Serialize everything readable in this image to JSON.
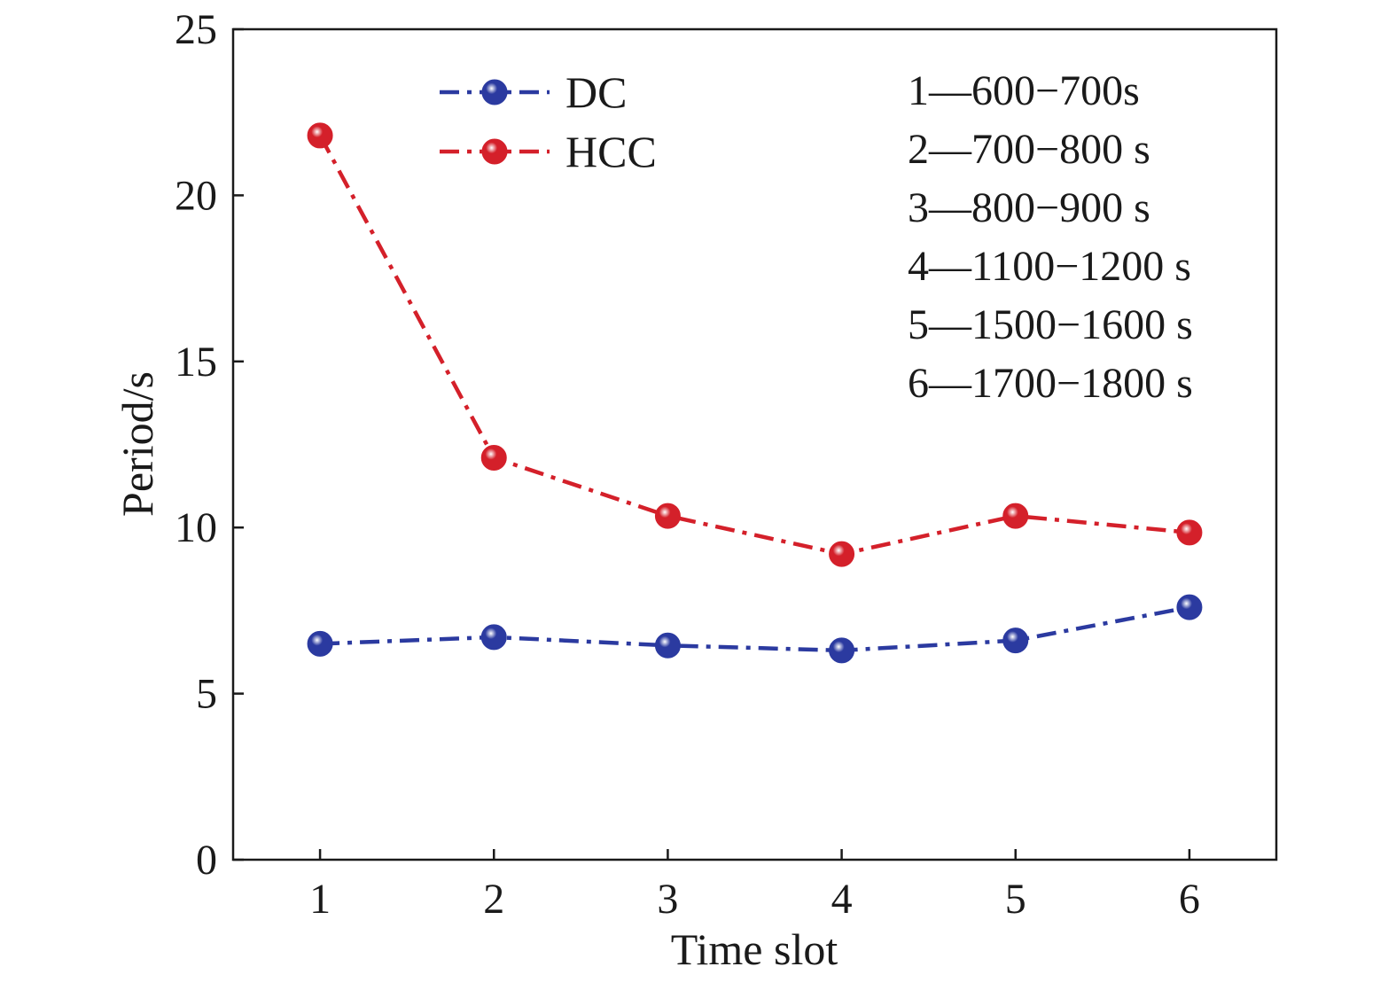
{
  "chart_data": {
    "type": "line",
    "title": "",
    "xlabel": "Time slot",
    "ylabel": "Period/s",
    "categories": [
      "1",
      "2",
      "3",
      "4",
      "5",
      "6"
    ],
    "x": [
      1,
      2,
      3,
      4,
      5,
      6
    ],
    "xlim": [
      0.5,
      6.5
    ],
    "ylim": [
      0,
      25
    ],
    "yticks": [
      "0",
      "5",
      "10",
      "15",
      "20",
      "25"
    ],
    "grid": false,
    "legend_position": "top-left",
    "series": [
      {
        "name": "DC",
        "color": "#2b3aa0",
        "marker": "sphere",
        "line_style": "dash-dot",
        "values": [
          6.5,
          6.7,
          6.45,
          6.3,
          6.6,
          7.6
        ]
      },
      {
        "name": "HCC",
        "color": "#d4202a",
        "marker": "sphere",
        "line_style": "dash-dot",
        "values": [
          21.8,
          12.1,
          10.35,
          9.2,
          10.35,
          9.85
        ]
      }
    ],
    "annotations": [
      "1—600−700s",
      "2—700−800 s",
      "3—800−900 s",
      "4—1100−1200 s",
      "5—1500−1600 s",
      "6—1700−1800 s"
    ]
  }
}
